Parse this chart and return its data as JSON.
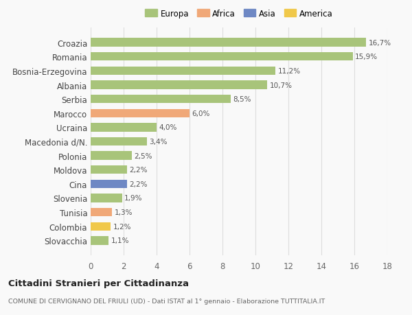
{
  "countries": [
    "Slovacchia",
    "Colombia",
    "Tunisia",
    "Slovenia",
    "Cina",
    "Moldova",
    "Polonia",
    "Macedonia d/N.",
    "Ucraina",
    "Marocco",
    "Serbia",
    "Albania",
    "Bosnia-Erzegovina",
    "Romania",
    "Croazia"
  ],
  "values": [
    1.1,
    1.2,
    1.3,
    1.9,
    2.2,
    2.2,
    2.5,
    3.4,
    4.0,
    6.0,
    8.5,
    10.7,
    11.2,
    15.9,
    16.7
  ],
  "colors": [
    "#a8c47a",
    "#f0c84a",
    "#f0a878",
    "#a8c47a",
    "#6e88c4",
    "#a8c47a",
    "#a8c47a",
    "#a8c47a",
    "#a8c47a",
    "#f0a878",
    "#a8c47a",
    "#a8c47a",
    "#a8c47a",
    "#a8c47a",
    "#a8c47a"
  ],
  "legend": [
    {
      "label": "Europa",
      "color": "#a8c47a"
    },
    {
      "label": "Africa",
      "color": "#f0a878"
    },
    {
      "label": "Asia",
      "color": "#6e88c4"
    },
    {
      "label": "America",
      "color": "#f0c84a"
    }
  ],
  "title": "Cittadini Stranieri per Cittadinanza",
  "subtitle": "COMUNE DI CERVIGNANO DEL FRIULI (UD) - Dati ISTAT al 1° gennaio - Elaborazione TUTTITALIA.IT",
  "xlim": [
    0,
    18
  ],
  "xticks": [
    0,
    2,
    4,
    6,
    8,
    10,
    12,
    14,
    16,
    18
  ],
  "background_color": "#f9f9f9",
  "bar_height": 0.6,
  "grid_color": "#dddddd"
}
